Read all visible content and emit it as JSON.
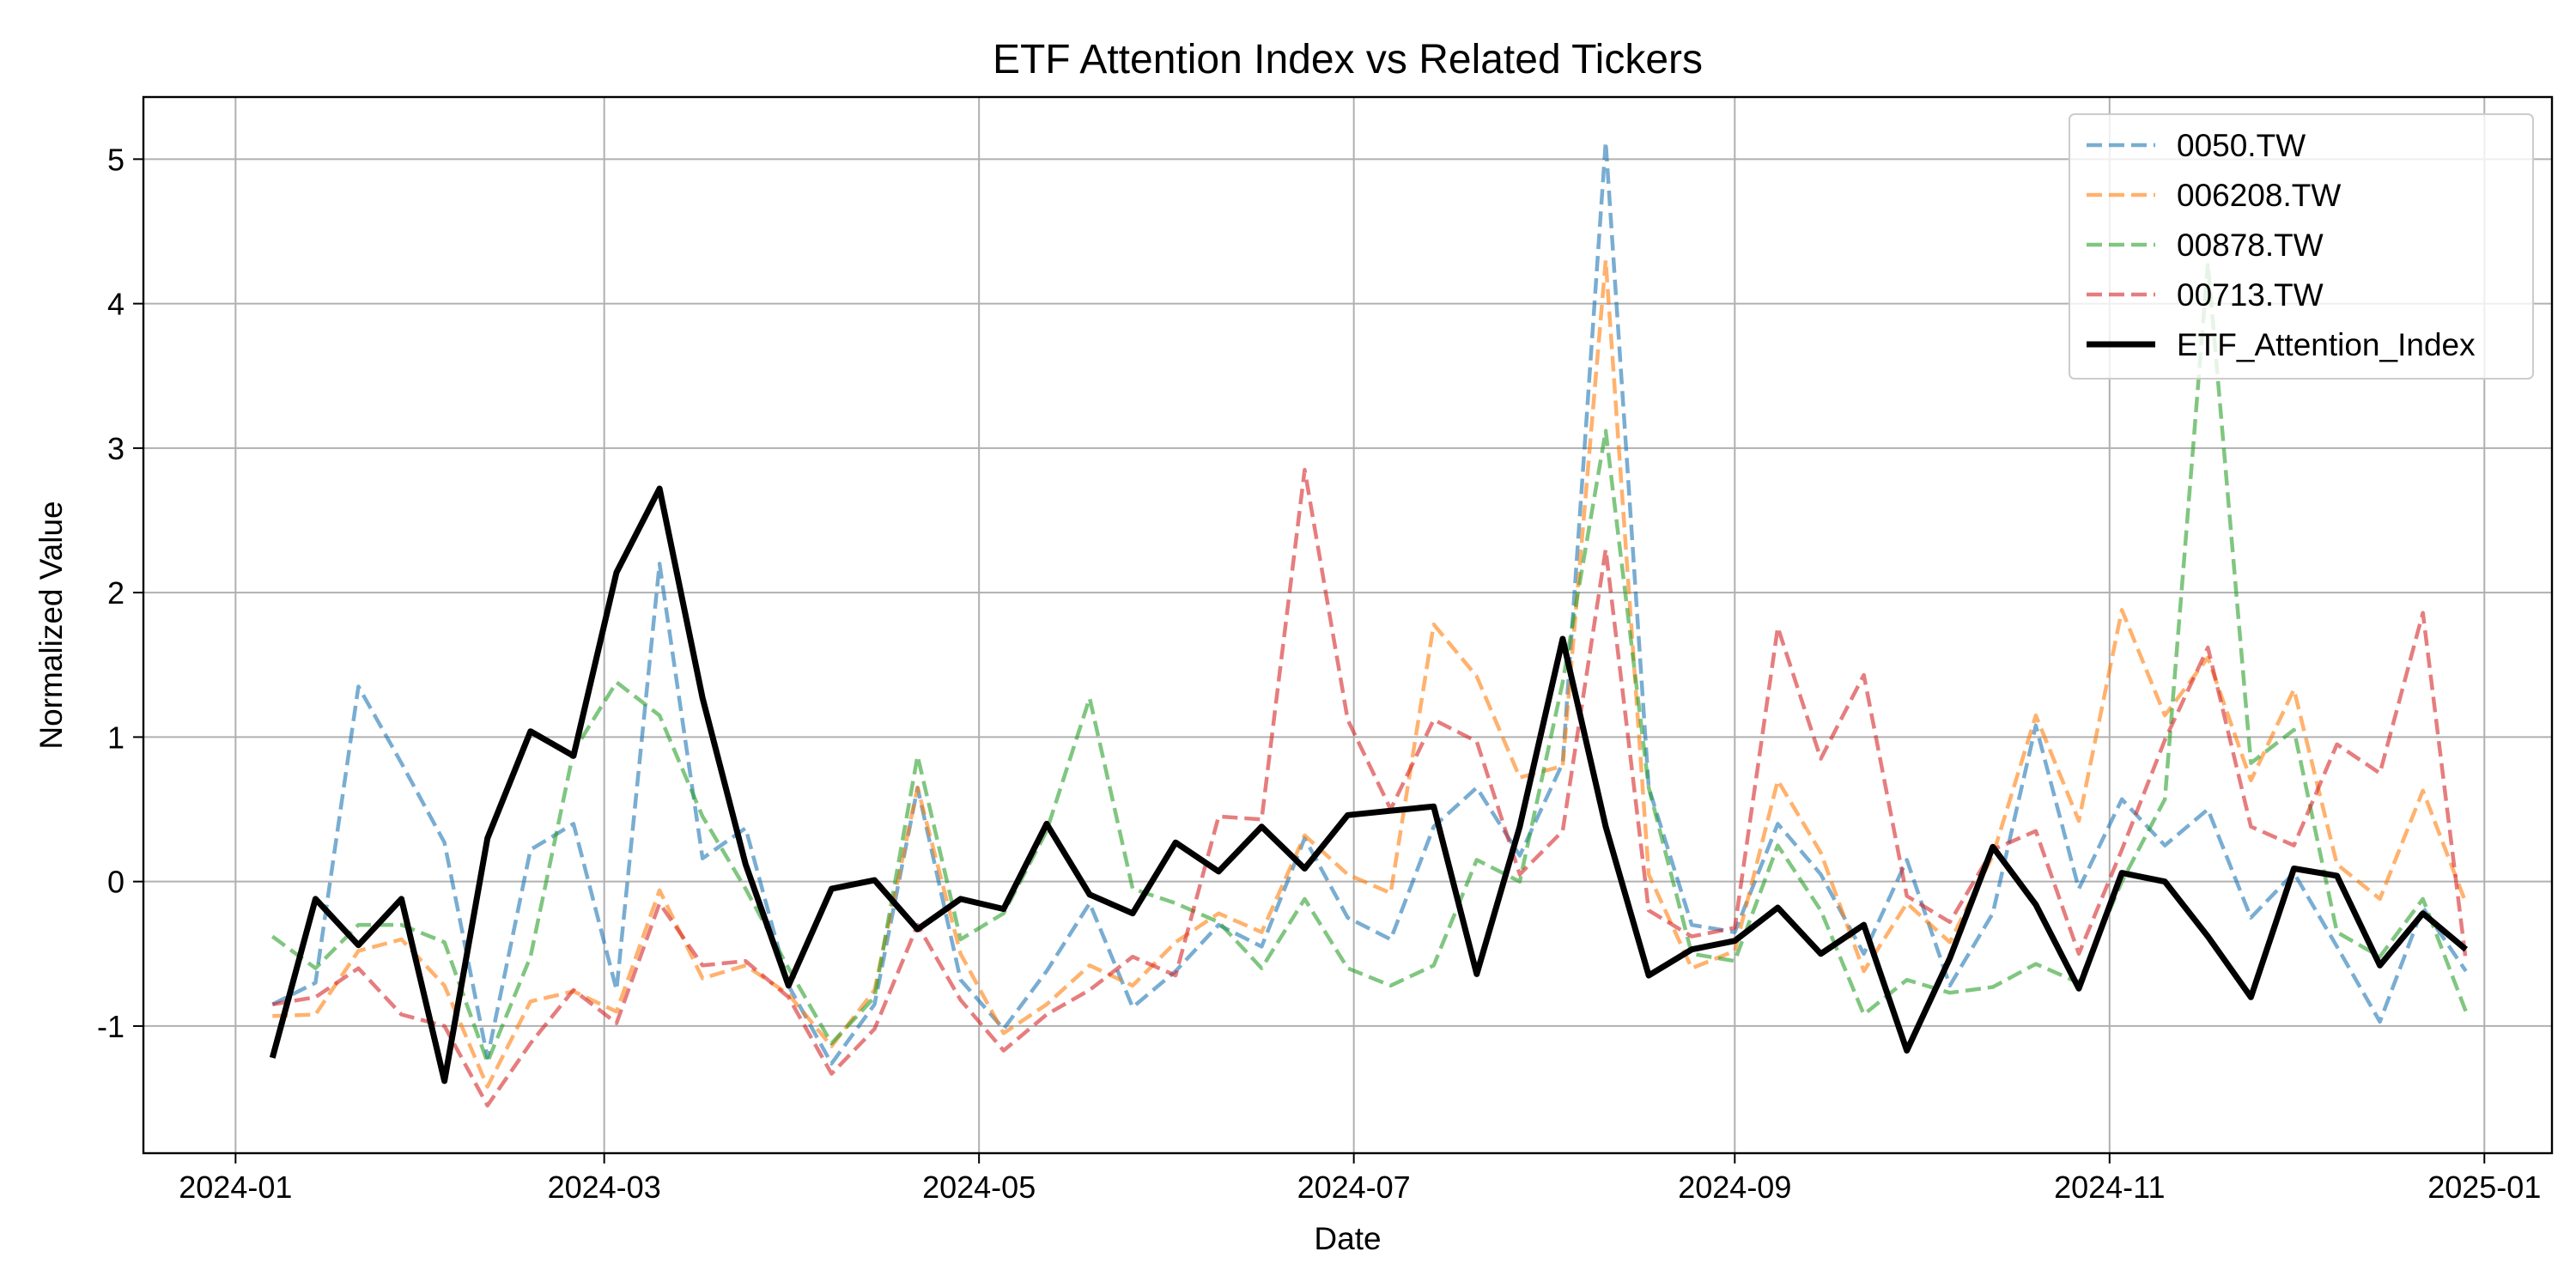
{
  "chart_data": {
    "type": "line",
    "title": "ETF Attention Index vs Related Tickers",
    "xlabel": "Date",
    "ylabel": "Normalized Value",
    "x_ticks": [
      "2024-01",
      "2024-03",
      "2024-05",
      "2024-07",
      "2024-09",
      "2024-11",
      "2025-01"
    ],
    "y_ticks": [
      "-1",
      "0",
      "1",
      "2",
      "3",
      "4",
      "5"
    ],
    "xlim": [
      "2023-12-17",
      "2025-01-12"
    ],
    "ylim": [
      -1.88,
      5.43
    ],
    "grid": true,
    "legend_position": "top-right",
    "x": [
      "2024-01-07",
      "2024-01-14",
      "2024-01-21",
      "2024-01-28",
      "2024-02-04",
      "2024-02-11",
      "2024-02-18",
      "2024-02-25",
      "2024-03-03",
      "2024-03-10",
      "2024-03-17",
      "2024-03-24",
      "2024-03-31",
      "2024-04-07",
      "2024-04-14",
      "2024-04-21",
      "2024-04-28",
      "2024-05-05",
      "2024-05-12",
      "2024-05-19",
      "2024-05-26",
      "2024-06-02",
      "2024-06-09",
      "2024-06-16",
      "2024-06-23",
      "2024-06-30",
      "2024-07-07",
      "2024-07-14",
      "2024-07-21",
      "2024-07-28",
      "2024-08-04",
      "2024-08-11",
      "2024-08-18",
      "2024-08-25",
      "2024-09-01",
      "2024-09-08",
      "2024-09-15",
      "2024-09-22",
      "2024-09-29",
      "2024-10-06",
      "2024-10-13",
      "2024-10-20",
      "2024-10-27",
      "2024-11-03",
      "2024-11-10",
      "2024-11-17",
      "2024-11-24",
      "2024-12-01",
      "2024-12-08",
      "2024-12-15",
      "2024-12-22",
      "2024-12-29"
    ],
    "series": [
      {
        "name": "0050.TW",
        "color": "#1f77b4",
        "style": "dashed",
        "values": [
          -0.85,
          -0.7,
          1.35,
          0.82,
          0.27,
          -1.22,
          0.22,
          0.4,
          -0.75,
          2.2,
          0.16,
          0.37,
          -0.72,
          -1.26,
          -0.85,
          0.65,
          -0.68,
          -1.02,
          -0.62,
          -0.15,
          -0.87,
          -0.62,
          -0.3,
          -0.45,
          0.3,
          -0.25,
          -0.4,
          0.38,
          0.65,
          0.18,
          0.82,
          5.12,
          0.65,
          -0.3,
          -0.35,
          0.4,
          0.05,
          -0.5,
          0.15,
          -0.72,
          -0.22,
          1.08,
          -0.05,
          0.57,
          0.25,
          0.5,
          -0.25,
          0.06,
          -0.45,
          -0.97,
          -0.18,
          -0.62
        ]
      },
      {
        "name": "006208.TW",
        "color": "#ff7f0e",
        "style": "dashed",
        "values": [
          -0.93,
          -0.92,
          -0.48,
          -0.4,
          -0.72,
          -1.42,
          -0.83,
          -0.76,
          -0.9,
          -0.06,
          -0.67,
          -0.58,
          -0.78,
          -1.14,
          -0.75,
          0.65,
          -0.5,
          -1.05,
          -0.85,
          -0.58,
          -0.72,
          -0.42,
          -0.22,
          -0.35,
          0.32,
          0.05,
          -0.08,
          1.78,
          1.42,
          0.72,
          0.8,
          4.3,
          0.05,
          -0.6,
          -0.48,
          0.7,
          0.2,
          -0.62,
          -0.15,
          -0.42,
          0.18,
          1.15,
          0.42,
          1.88,
          1.15,
          1.55,
          0.7,
          1.33,
          0.12,
          -0.12,
          0.63,
          -0.15
        ]
      },
      {
        "name": "00878.TW",
        "color": "#2ca02c",
        "style": "dashed",
        "values": [
          -0.38,
          -0.6,
          -0.3,
          -0.3,
          -0.42,
          -1.25,
          -0.52,
          0.9,
          1.38,
          1.15,
          0.45,
          -0.05,
          -0.6,
          -1.12,
          -0.8,
          0.87,
          -0.4,
          -0.22,
          0.35,
          1.27,
          -0.05,
          -0.15,
          -0.28,
          -0.6,
          -0.12,
          -0.6,
          -0.72,
          -0.58,
          0.15,
          0.0,
          1.38,
          3.12,
          0.65,
          -0.5,
          -0.55,
          0.25,
          -0.2,
          -0.92,
          -0.68,
          -0.77,
          -0.73,
          -0.57,
          -0.7,
          0.0,
          0.57,
          4.28,
          0.82,
          1.05,
          -0.35,
          -0.52,
          -0.12,
          -0.9
        ]
      },
      {
        "name": "00713.TW",
        "color": "#d62728",
        "style": "dashed",
        "values": [
          -0.85,
          -0.8,
          -0.6,
          -0.92,
          -1.0,
          -1.55,
          -1.12,
          -0.75,
          -0.98,
          -0.15,
          -0.58,
          -0.55,
          -0.8,
          -1.33,
          -1.02,
          -0.3,
          -0.82,
          -1.17,
          -0.92,
          -0.75,
          -0.52,
          -0.65,
          0.45,
          0.43,
          2.85,
          1.12,
          0.5,
          1.12,
          0.97,
          0.05,
          0.35,
          2.3,
          -0.2,
          -0.38,
          -0.32,
          1.76,
          0.85,
          1.43,
          -0.1,
          -0.28,
          0.22,
          0.35,
          -0.5,
          0.22,
          0.98,
          1.62,
          0.38,
          0.25,
          0.95,
          0.75,
          1.86,
          -0.55
        ]
      },
      {
        "name": "ETF_Attention_Index",
        "color": "#000000",
        "style": "solid",
        "values": [
          -1.22,
          -0.12,
          -0.44,
          -0.12,
          -1.38,
          0.3,
          1.04,
          0.87,
          2.14,
          2.72,
          1.27,
          0.12,
          -0.72,
          -0.05,
          0.01,
          -0.33,
          -0.12,
          -0.19,
          0.4,
          -0.09,
          -0.22,
          0.27,
          0.07,
          0.38,
          0.09,
          0.46,
          0.49,
          0.52,
          -0.64,
          0.38,
          1.68,
          0.38,
          -0.65,
          -0.47,
          -0.41,
          -0.18,
          -0.5,
          -0.3,
          -1.17,
          -0.53,
          0.24,
          -0.16,
          -0.74,
          0.06,
          0.0,
          -0.38,
          -0.8,
          0.09,
          0.04,
          -0.58,
          -0.22,
          -0.47
        ]
      }
    ]
  }
}
